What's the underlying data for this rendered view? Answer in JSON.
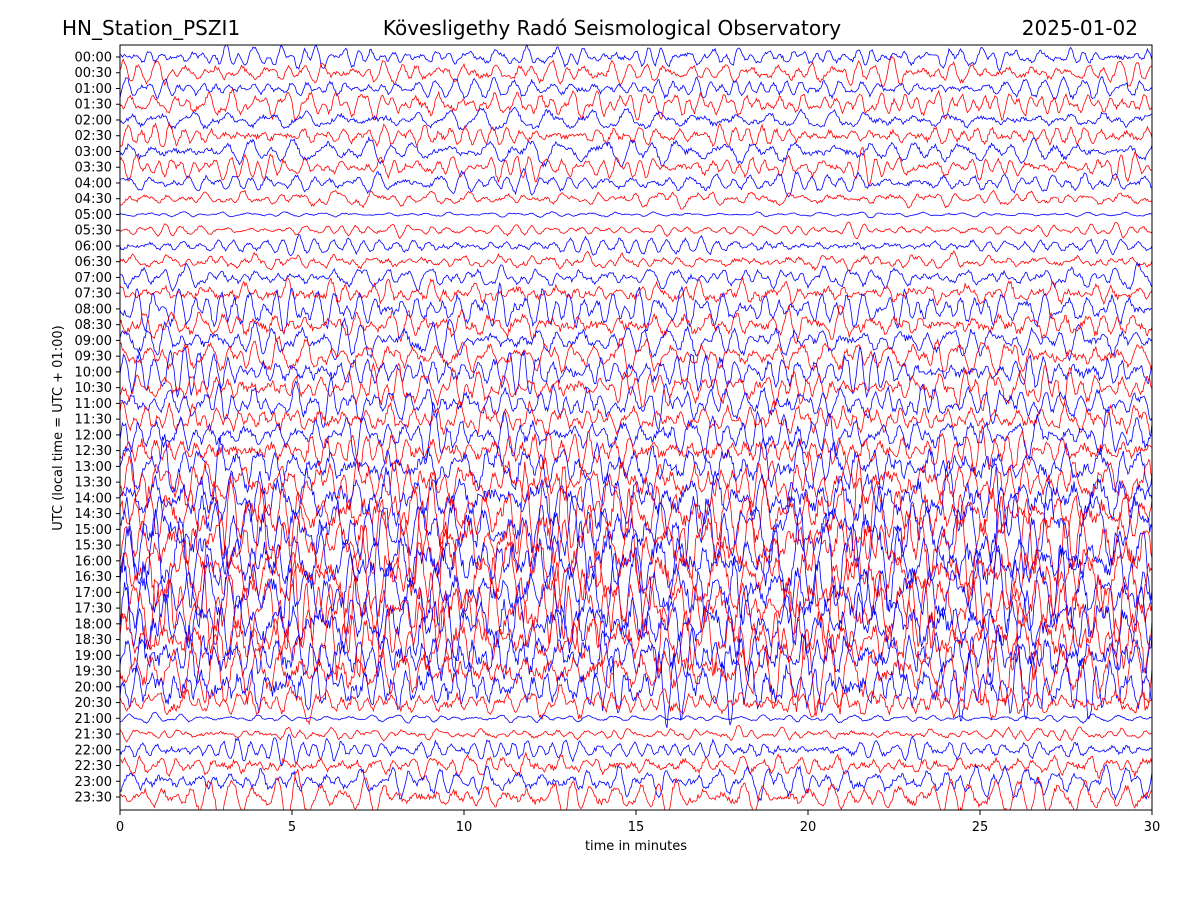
{
  "header": {
    "station": "HN_Station_PSZI1",
    "title": "Kövesligethy Radó Seismological Observatory",
    "date": "2025-01-02"
  },
  "chart_data": {
    "type": "line",
    "title": "Kövesligethy Radó Seismological Observatory",
    "xlabel": "time in minutes",
    "ylabel": "UTC (local time = UTC + 01:00)",
    "xlim": [
      0,
      30
    ],
    "x_ticks": [
      "0",
      "5",
      "10",
      "15",
      "20",
      "25",
      "30"
    ],
    "y_ticks": [
      "00:00",
      "00:30",
      "01:00",
      "01:30",
      "02:00",
      "02:30",
      "03:00",
      "03:30",
      "04:00",
      "04:30",
      "05:00",
      "05:30",
      "06:00",
      "06:30",
      "07:00",
      "07:30",
      "08:00",
      "08:30",
      "09:00",
      "09:30",
      "10:00",
      "10:30",
      "11:00",
      "11:30",
      "12:00",
      "12:30",
      "13:00",
      "13:30",
      "14:00",
      "14:30",
      "15:00",
      "15:30",
      "16:00",
      "16:30",
      "17:00",
      "17:30",
      "18:00",
      "18:30",
      "19:00",
      "19:30",
      "20:00",
      "20:30",
      "21:00",
      "21:30",
      "22:00",
      "22:30",
      "23:00",
      "23:30"
    ],
    "trace_colors": [
      "#0000ff",
      "#ff0000"
    ],
    "relative_amplitude_per_row": [
      8,
      9,
      8,
      10,
      9,
      10,
      10,
      9,
      8,
      6,
      2,
      4,
      7,
      7,
      8,
      12,
      14,
      14,
      13,
      14,
      15,
      14,
      13,
      14,
      16,
      18,
      20,
      22,
      26,
      28,
      30,
      32,
      32,
      32,
      30,
      30,
      30,
      28,
      28,
      26,
      24,
      14,
      3,
      5,
      9,
      11,
      12,
      13
    ]
  }
}
